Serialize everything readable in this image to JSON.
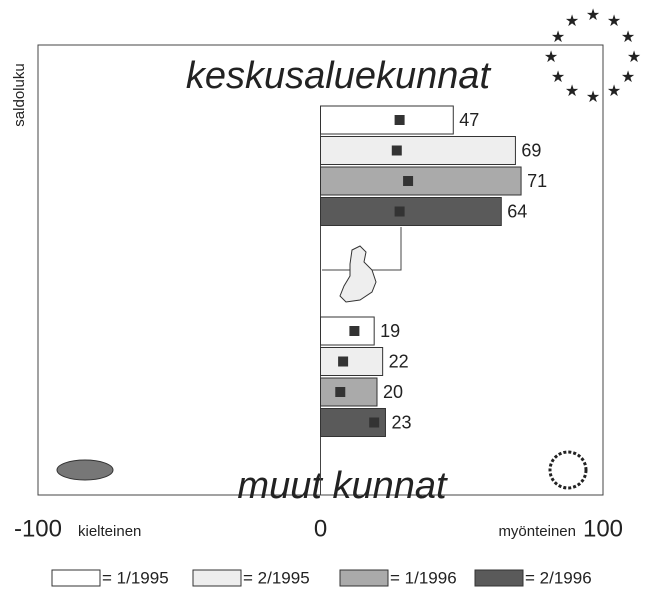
{
  "chart_data": {
    "type": "bar",
    "orientation": "horizontal",
    "ylabel": "saldoluku",
    "categories": [
      "keskusaluekunnat",
      "muut kunnat"
    ],
    "series": [
      {
        "name": "= 1/1995",
        "color": "#ffffff",
        "values": [
          47,
          19
        ],
        "markers": [
          28,
          12
        ]
      },
      {
        "name": "= 2/1995",
        "color": "#eeeeee",
        "values": [
          69,
          22
        ],
        "markers": [
          27,
          8
        ]
      },
      {
        "name": "= 1/1996",
        "color": "#aaaaaa",
        "values": [
          71,
          20
        ],
        "markers": [
          31,
          7
        ]
      },
      {
        "name": "= 2/1996",
        "color": "#5a5a5a",
        "values": [
          64,
          23
        ],
        "markers": [
          28,
          19
        ]
      }
    ],
    "xlim": [
      -100,
      100
    ],
    "xticks": [
      -100,
      0,
      100
    ],
    "xlabel_left": "kielteinen",
    "xlabel_right": "myönteinen"
  }
}
